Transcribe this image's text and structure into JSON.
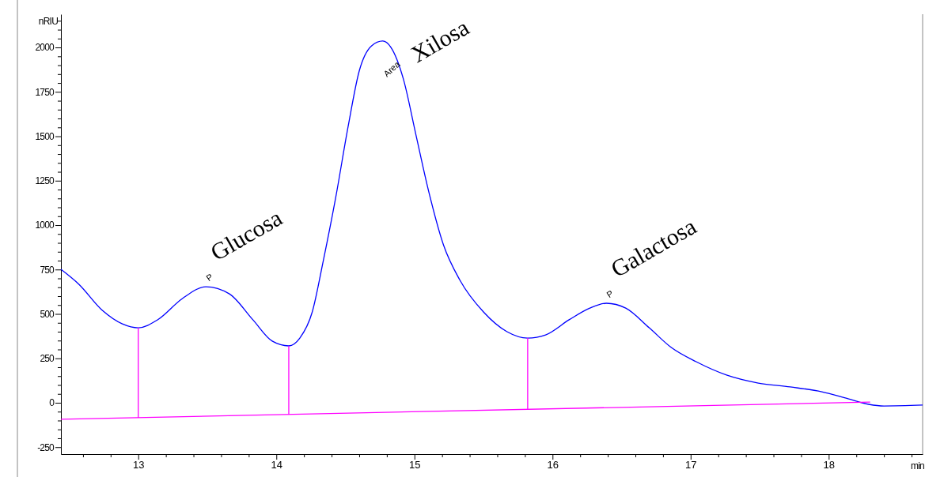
{
  "chart_data": {
    "type": "line",
    "xlabel": "min",
    "ylabel": "nRIU",
    "xlim": [
      12.44,
      18.68
    ],
    "ylim": [
      -289,
      2187
    ],
    "xticks": [
      {
        "value": 12.6,
        "label": null
      },
      {
        "value": 12.8,
        "label": null
      },
      13,
      {
        "value": 13.2,
        "label": null
      },
      {
        "value": 13.4,
        "label": null
      },
      {
        "value": 13.6,
        "label": null
      },
      {
        "value": 13.8,
        "label": null
      },
      14,
      {
        "value": 14.2,
        "label": null
      },
      {
        "value": 14.4,
        "label": null
      },
      {
        "value": 14.6,
        "label": null
      },
      {
        "value": 14.8,
        "label": null
      },
      15,
      {
        "value": 15.2,
        "label": null
      },
      {
        "value": 15.4,
        "label": null
      },
      {
        "value": 15.6,
        "label": null
      },
      {
        "value": 15.8,
        "label": null
      },
      16,
      {
        "value": 16.2,
        "label": null
      },
      {
        "value": 16.4,
        "label": null
      },
      {
        "value": 16.6,
        "label": null
      },
      {
        "value": 16.8,
        "label": null
      },
      17,
      {
        "value": 17.2,
        "label": null
      },
      {
        "value": 17.4,
        "label": null
      },
      {
        "value": 17.6,
        "label": null
      },
      {
        "value": 17.8,
        "label": null
      },
      18,
      {
        "value": 18.2,
        "label": null
      },
      {
        "value": 18.4,
        "label": null
      },
      {
        "value": 18.6,
        "label": null
      }
    ],
    "yticks": [
      -250,
      {
        "value": -200,
        "label": null
      },
      {
        "value": -150,
        "label": null
      },
      {
        "value": -100,
        "label": null
      },
      {
        "value": -50,
        "label": null
      },
      0,
      {
        "value": 50,
        "label": null
      },
      {
        "value": 100,
        "label": null
      },
      {
        "value": 150,
        "label": null
      },
      {
        "value": 200,
        "label": null
      },
      250,
      {
        "value": 300,
        "label": null
      },
      {
        "value": 350,
        "label": null
      },
      {
        "value": 400,
        "label": null
      },
      {
        "value": 450,
        "label": null
      },
      500,
      {
        "value": 550,
        "label": null
      },
      {
        "value": 600,
        "label": null
      },
      {
        "value": 650,
        "label": null
      },
      {
        "value": 700,
        "label": null
      },
      750,
      {
        "value": 800,
        "label": null
      },
      {
        "value": 850,
        "label": null
      },
      {
        "value": 900,
        "label": null
      },
      {
        "value": 950,
        "label": null
      },
      1000,
      {
        "value": 1050,
        "label": null
      },
      {
        "value": 1100,
        "label": null
      },
      {
        "value": 1150,
        "label": null
      },
      {
        "value": 1200,
        "label": null
      },
      1250,
      {
        "value": 1300,
        "label": null
      },
      {
        "value": 1350,
        "label": null
      },
      {
        "value": 1400,
        "label": null
      },
      {
        "value": 1450,
        "label": null
      },
      1500,
      {
        "value": 1550,
        "label": null
      },
      {
        "value": 1600,
        "label": null
      },
      {
        "value": 1650,
        "label": null
      },
      {
        "value": 1700,
        "label": null
      },
      1750,
      {
        "value": 1800,
        "label": null
      },
      {
        "value": 1850,
        "label": null
      },
      {
        "value": 1900,
        "label": null
      },
      {
        "value": 1950,
        "label": null
      },
      2000,
      {
        "value": 2050,
        "label": null
      },
      {
        "value": 2100,
        "label": null
      },
      {
        "value": 2150,
        "label": null
      }
    ],
    "grid": false,
    "marker": "none",
    "line_style": "solid",
    "series": [
      {
        "color": "#0000ff",
        "x": [
          12.44,
          12.57,
          12.74,
          12.885,
          13.0,
          13.14,
          13.32,
          13.49,
          13.66,
          13.83,
          13.97,
          14.09,
          14.17,
          14.26,
          14.34,
          14.43,
          14.52,
          14.6,
          14.69,
          14.77,
          14.83,
          14.92,
          15.01,
          15.1,
          15.21,
          15.33,
          15.5,
          15.67,
          15.82,
          15.95,
          16.12,
          16.27,
          16.39,
          16.53,
          16.7,
          16.86,
          17.04,
          17.26,
          17.49,
          17.72,
          17.95,
          18.12,
          18.29,
          18.4,
          18.68
        ],
        "values": [
          751,
          667,
          520,
          444,
          422,
          467,
          587,
          653,
          613,
          467,
          347,
          320,
          364,
          511,
          800,
          1156,
          1556,
          1867,
          2009,
          2036,
          2000,
          1822,
          1511,
          1200,
          889,
          689,
          511,
          400,
          364,
          382,
          467,
          533,
          560,
          533,
          422,
          311,
          231,
          156,
          111,
          89,
          62,
          27,
          -9,
          -18,
          -13
        ]
      },
      {
        "color": "#ff00ff",
        "x": [
          12.44,
          18.3
        ],
        "values": [
          -93,
          4
        ]
      },
      {
        "color": "#ff00ff",
        "x": [
          13.0,
          13.0
        ],
        "values": [
          -84,
          422
        ]
      },
      {
        "color": "#ff00ff",
        "x": [
          14.09,
          14.09
        ],
        "values": [
          -66,
          320
        ]
      },
      {
        "color": "#ff00ff",
        "x": [
          15.82,
          15.82
        ],
        "values": [
          -37,
          364
        ]
      }
    ],
    "annotations": [
      {
        "text": "Glucosa",
        "x": 13.49,
        "y": 653
      },
      {
        "text": "Xilosa",
        "x": 14.77,
        "y": 2036
      },
      {
        "text": "Galactosa",
        "x": 16.39,
        "y": 560
      },
      {
        "text": "Area",
        "x": 14.77,
        "y": 2036
      },
      {
        "text": "P",
        "x": 13.49,
        "y": 653
      },
      {
        "text": "P",
        "x": 16.39,
        "y": 560
      }
    ]
  }
}
